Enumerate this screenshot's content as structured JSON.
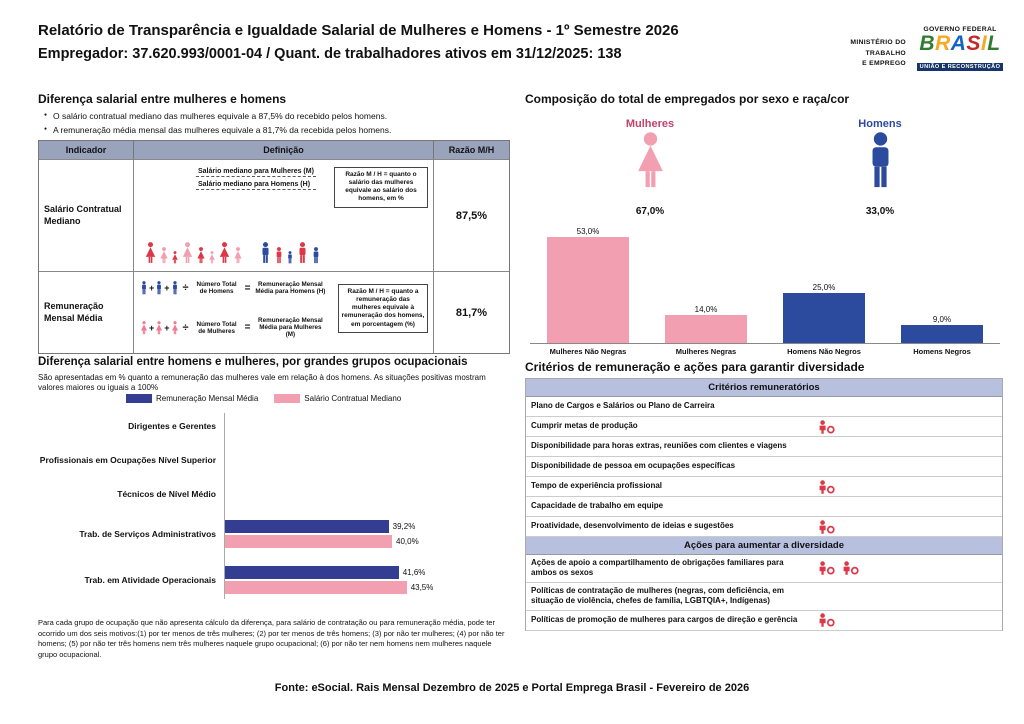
{
  "header": {
    "title": "Relatório de Transparência e Igualdade Salarial de Mulheres e Homens - 1º Semestre 2026",
    "subtitle": "Empregador: 37.620.993/0001-04 / Quant. de trabalhadores ativos em 31/12/2025: 138",
    "ministry_lines": [
      "MINISTÉRIO DO",
      "TRABALHO",
      "E EMPREGO"
    ],
    "gov_label": "GOVERNO FEDERAL",
    "brand": "BRASIL",
    "gov_sub": "UNIÃO E RECONSTRUÇÃO"
  },
  "symbols": {
    "divide": "÷",
    "equals": "="
  },
  "section_pay_gap": {
    "title": "Diferença salarial entre mulheres e homens",
    "bullets": [
      "O salário contratual mediano das mulheres equivale a 87,5% do recebido pelos homens.",
      "A remuneração média mensal das mulheres equivale a 81,7% da recebida pelos homens."
    ],
    "table": {
      "col_indicator": "Indicador",
      "col_definition": "Definição",
      "col_ratio": "Razão M/H",
      "rows": [
        {
          "indicator": "Salário Contratual Mediano",
          "label_women": "Salário mediano para Mulheres (M)",
          "label_men": "Salário mediano para Homens (H)",
          "note": "Razão M / H = quanto o salário das mulheres equivale ao salário dos homens, em %",
          "ratio": "87,5%"
        },
        {
          "indicator": "Remuneração Mensal Média",
          "men_total": "Número Total de Homens",
          "men_result": "Remuneração Mensal Média para Homens (H)",
          "women_total": "Número Total de Mulheres",
          "women_result": "Remuneração Mensal Média para Mulheres (M)",
          "note": "Razão M / H = quanto a remuneração das mulheres equivale à remuneração dos homens, em porcentagem (%)",
          "ratio": "81,7%"
        }
      ]
    }
  },
  "figures": {
    "median_women": [
      {
        "t": "w",
        "c": "#DD3848",
        "h": 22
      },
      {
        "t": "w",
        "c": "#F29FB1",
        "h": 17
      },
      {
        "t": "w",
        "c": "#DD3848",
        "h": 13
      },
      {
        "t": "w",
        "c": "#F29FB1",
        "h": 22
      },
      {
        "t": "w",
        "c": "#DD3848",
        "h": 17
      },
      {
        "t": "w",
        "c": "#F29FB1",
        "h": 13
      },
      {
        "t": "w",
        "c": "#DD3848",
        "h": 22
      },
      {
        "t": "w",
        "c": "#F29FB1",
        "h": 17
      }
    ],
    "median_men": [
      {
        "t": "m",
        "c": "#2C4B9E",
        "h": 22
      },
      {
        "t": "m",
        "c": "#DD3848",
        "h": 17
      },
      {
        "t": "m",
        "c": "#2C4B9E",
        "h": 13
      },
      {
        "t": "m",
        "c": "#DD3848",
        "h": 22
      },
      {
        "t": "m",
        "c": "#2C4B9E",
        "h": 17
      }
    ],
    "formula_men": {
      "t": "m",
      "c": "#2C4B9E",
      "n": 3,
      "h": 14
    },
    "formula_women": {
      "t": "w",
      "c": "#F07A93",
      "n": 3,
      "h": 14
    }
  },
  "section_composition": {
    "title": "Composição do total de empregados por sexo e raça/cor",
    "women_label": "Mulheres",
    "men_label": "Homens",
    "women_pct": "67,0%",
    "men_pct": "33,0%"
  },
  "section_occupational": {
    "title": "Diferença salarial entre homens e mulheres, por grandes grupos ocupacionais",
    "note": "São apresentadas em % quanto a remuneração das mulheres vale em relação à dos homens. As situações positivas mostram valores maiores ou iguais a 100%",
    "footnote": "Para cada grupo de ocupação que não apresenta cálculo da diferença, para salário de contratação ou para remuneração média, pode ter ocorrido um dos seis motivos:(1) por ter menos de três mulheres; (2) por ter menos de três homens; (3) por não ter mulheres; (4) por não ter homens; (5) por não ter três homens nem três mulheres naquele grupo ocupacional; (6) por não ter nem homens nem mulheres naquele grupo ocupacional."
  },
  "section_criteria": {
    "title": "Critérios de remuneração e ações para garantir diversidade",
    "criteria_header": "Critérios remuneratórios",
    "criteria_rows": [
      {
        "label": "Plano de Cargos e Salários ou Plano de Carreira",
        "marks": 0
      },
      {
        "label": "Cumprir metas de produção",
        "marks": 1
      },
      {
        "label": "Disponibilidade para horas extras, reuniões com clientes e viagens",
        "marks": 0
      },
      {
        "label": "Disponibilidade de pessoa em ocupações específicas",
        "marks": 0
      },
      {
        "label": "Tempo de experiência profissional",
        "marks": 1
      },
      {
        "label": "Capacidade de trabalho em equipe",
        "marks": 0
      },
      {
        "label": "Proatividade, desenvolvimento de ideias e sugestões",
        "marks": 1
      }
    ],
    "actions_header": "Ações para aumentar a diversidade",
    "actions_rows": [
      {
        "label": "Ações de apoio a compartilhamento de obrigações familiares para ambos os sexos",
        "marks": 2
      },
      {
        "label": "Políticas de contratação de mulheres (negras, com deficiência, em situação de violência, chefes de família, LGBTQIA+, Indígenas)",
        "marks": 0
      },
      {
        "label": "Políticas de promoção de mulheres para cargos de direção e gerência",
        "marks": 1
      }
    ]
  },
  "footer": {
    "source": "Fonte: eSocial. Rais Mensal Dezembro de 2025 e Portal Emprega Brasil - Fevereiro de 2026"
  },
  "colors": {
    "pink": "#F29FB1",
    "blue": "#2C4B9E",
    "navy": "#333E92",
    "red": "#DD3848",
    "women_label": "#C2426B",
    "table_header_bg": "#99A3BC",
    "criteria_header_bg": "#B7C0DE",
    "gov_bar": "#17356B"
  },
  "chart_data": [
    {
      "type": "bar",
      "title": "Composição do total de empregados por sexo e raça/cor",
      "categories": [
        "Mulheres Não Negras",
        "Mulheres Negras",
        "Homens Não Negros",
        "Homens Negros"
      ],
      "values": [
        53.0,
        14.0,
        25.0,
        9.0
      ],
      "labels": [
        "53,0%",
        "14,0%",
        "25,0%",
        "9,0%"
      ],
      "colors": [
        "#F29FB1",
        "#F29FB1",
        "#2C4B9E",
        "#2C4B9E"
      ],
      "summary": {
        "mulheres_pct": 67.0,
        "homens_pct": 33.0
      },
      "xlabel": "",
      "ylabel": "",
      "ylim": [
        0,
        60
      ],
      "grid": false,
      "legend_position": "none"
    },
    {
      "type": "bar",
      "orientation": "horizontal",
      "title": "Diferença salarial entre homens e mulheres, por grandes grupos ocupacionais",
      "categories": [
        "Dirigentes e Gerentes",
        "Profissionais em Ocupações Nível Superior",
        "Técnicos de Nível Médio",
        "Trab. de Serviços Administrativos",
        "Trab. em Atividade Operacionais"
      ],
      "series": [
        {
          "name": "Remuneração Mensal Média",
          "color": "#333E92",
          "values": [
            null,
            null,
            null,
            39.2,
            41.6
          ],
          "labels": [
            "",
            "",
            "",
            "39,2%",
            "41,6%"
          ]
        },
        {
          "name": "Salário Contratual Mediano",
          "color": "#F29FB1",
          "values": [
            null,
            null,
            null,
            40.0,
            43.5
          ],
          "labels": [
            "",
            "",
            "",
            "40,0%",
            "43,5%"
          ]
        }
      ],
      "xlabel": "",
      "ylabel": "",
      "xlim": [
        0,
        100
      ],
      "grid": false,
      "legend_position": "top"
    }
  ]
}
